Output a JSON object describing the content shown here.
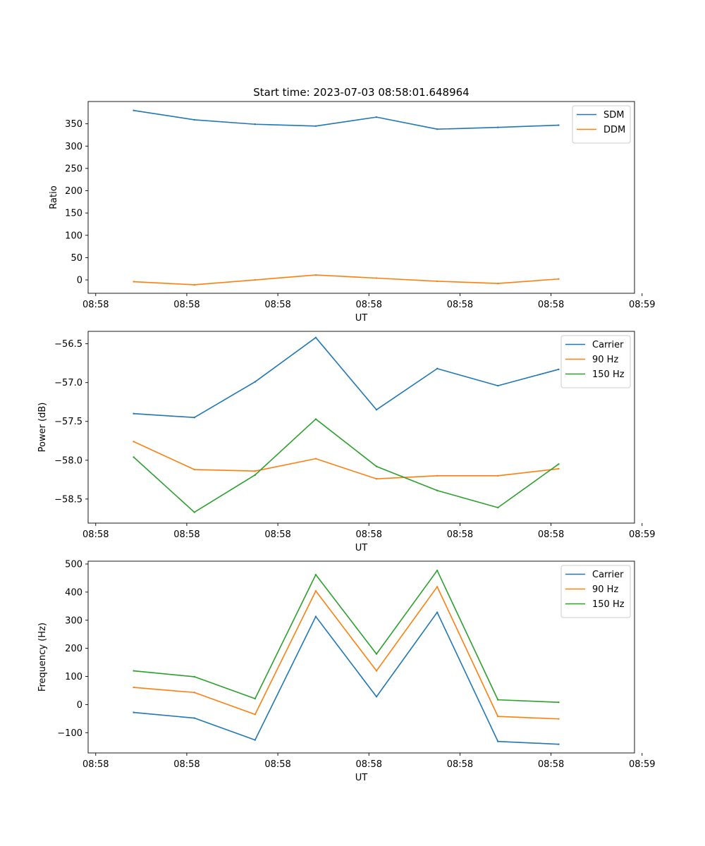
{
  "figure_title": "Start time: 2023-07-03 08:58:01.648964",
  "chart_data": [
    {
      "type": "line",
      "title": "Start time: 2023-07-03 08:58:01.648964",
      "xlabel": "UT",
      "ylabel": "Ratio",
      "x": [
        0.5,
        1.3,
        2.1,
        2.9,
        3.7,
        4.5,
        5.3,
        6.1
      ],
      "xlim": [
        -0.1,
        7.1
      ],
      "x_ticks": [
        0,
        1.2,
        2.4,
        3.6,
        4.8,
        6.0,
        7.2
      ],
      "x_tick_labels": [
        "08:58",
        "08:58",
        "08:58",
        "08:58",
        "08:58",
        "08:58",
        "08:59"
      ],
      "ylim": [
        -30,
        400
      ],
      "y_ticks": [
        0,
        50,
        100,
        150,
        200,
        250,
        300,
        350
      ],
      "y_tick_labels": [
        "0",
        "50",
        "100",
        "150",
        "200",
        "250",
        "300",
        "350"
      ],
      "legend_position": "top-right",
      "series": [
        {
          "name": "SDM",
          "color": "#1f77b4",
          "values": [
            380,
            359,
            349,
            345,
            365,
            338,
            342,
            347
          ]
        },
        {
          "name": "DDM",
          "color": "#ff7f0e",
          "values": [
            -4,
            -11,
            0,
            11,
            4,
            -3,
            -8,
            2
          ]
        }
      ]
    },
    {
      "type": "line",
      "title": "",
      "xlabel": "UT",
      "ylabel": "Power (dB)",
      "x": [
        0.5,
        1.3,
        2.1,
        2.9,
        3.7,
        4.5,
        5.3,
        6.1
      ],
      "xlim": [
        -0.1,
        7.1
      ],
      "x_ticks": [
        0,
        1.2,
        2.4,
        3.6,
        4.8,
        6.0,
        7.2
      ],
      "x_tick_labels": [
        "08:58",
        "08:58",
        "08:58",
        "08:58",
        "08:58",
        "08:58",
        "08:59"
      ],
      "ylim": [
        -58.81,
        -56.34
      ],
      "y_ticks": [
        -58.5,
        -58.0,
        -57.5,
        -57.0,
        -56.5
      ],
      "y_tick_labels": [
        "−58.5",
        "−58.0",
        "−57.5",
        "−57.0",
        "−56.5"
      ],
      "legend_position": "top-right",
      "series": [
        {
          "name": "Carrier",
          "color": "#1f77b4",
          "values": [
            -57.4,
            -57.45,
            -56.99,
            -56.42,
            -57.35,
            -56.82,
            -57.04,
            -56.83
          ]
        },
        {
          "name": "90 Hz",
          "color": "#ff7f0e",
          "values": [
            -57.76,
            -58.12,
            -58.14,
            -57.98,
            -58.24,
            -58.2,
            -58.2,
            -58.11
          ]
        },
        {
          "name": "150 Hz",
          "color": "#2ca02c",
          "values": [
            -57.96,
            -58.67,
            -58.19,
            -57.47,
            -58.08,
            -58.39,
            -58.61,
            -58.05
          ]
        }
      ]
    },
    {
      "type": "line",
      "title": "",
      "xlabel": "UT",
      "ylabel": "Frequency (Hz)",
      "x": [
        0.5,
        1.3,
        2.1,
        2.9,
        3.7,
        4.5,
        5.3,
        6.1
      ],
      "xlim": [
        -0.1,
        7.1
      ],
      "x_ticks": [
        0,
        1.2,
        2.4,
        3.6,
        4.8,
        6.0,
        7.2
      ],
      "x_tick_labels": [
        "08:58",
        "08:58",
        "08:58",
        "08:58",
        "08:58",
        "08:58",
        "08:59"
      ],
      "ylim": [
        -172,
        510
      ],
      "y_ticks": [
        -100,
        0,
        100,
        200,
        300,
        400,
        500
      ],
      "y_tick_labels": [
        "−100",
        "0",
        "100",
        "200",
        "300",
        "400",
        "500"
      ],
      "legend_position": "top-right",
      "series": [
        {
          "name": "Carrier",
          "color": "#1f77b4",
          "values": [
            -28,
            -48,
            -126,
            313,
            28,
            328,
            -131,
            -141
          ]
        },
        {
          "name": "90 Hz",
          "color": "#ff7f0e",
          "values": [
            61,
            43,
            -35,
            404,
            120,
            419,
            -42,
            -51
          ]
        },
        {
          "name": "150 Hz",
          "color": "#2ca02c",
          "values": [
            120,
            99,
            21,
            462,
            180,
            477,
            17,
            8
          ]
        }
      ]
    }
  ]
}
